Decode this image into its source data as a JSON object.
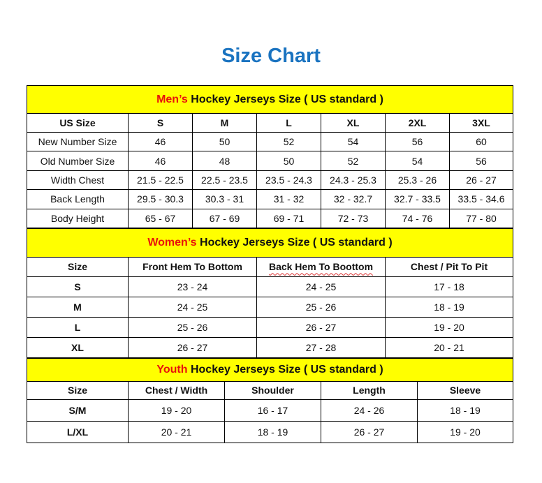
{
  "title": "Size Chart",
  "colors": {
    "title": "#1a73c0",
    "section_bg": "#ffff00",
    "section_accent": "#e8120c"
  },
  "men": {
    "heading_accent": "Men’s",
    "heading_rest": " Hockey Jerseys Size ( US standard )",
    "columns": [
      "US Size",
      "S",
      "M",
      "L",
      "XL",
      "2XL",
      "3XL"
    ],
    "rows": [
      [
        "New Number Size",
        "46",
        "50",
        "52",
        "54",
        "56",
        "60"
      ],
      [
        "Old Number Size",
        "46",
        "48",
        "50",
        "52",
        "54",
        "56"
      ],
      [
        "Width Chest",
        "21.5 - 22.5",
        "22.5 - 23.5",
        "23.5 - 24.3",
        "24.3 - 25.3",
        "25.3 - 26",
        "26 - 27"
      ],
      [
        "Back Length",
        "29.5 - 30.3",
        "30.3 - 31",
        "31 - 32",
        "32 - 32.7",
        "32.7 - 33.5",
        "33.5 - 34.6"
      ],
      [
        "Body Height",
        "65 - 67",
        "67 - 69",
        "69 - 71",
        "72 - 73",
        "74 - 76",
        "77 - 80"
      ]
    ]
  },
  "women": {
    "heading_accent": "Women’s",
    "heading_rest": " Hockey Jerseys Size ( US standard )",
    "columns": [
      "Size",
      "Front Hem To Bottom",
      "Back Hem To Boottom",
      "Chest / Pit To Pit"
    ],
    "rows": [
      [
        "S",
        "23 - 24",
        "24 - 25",
        "17 - 18"
      ],
      [
        "M",
        "24 - 25",
        "25 - 26",
        "18 - 19"
      ],
      [
        "L",
        "25 - 26",
        "26 - 27",
        "19 - 20"
      ],
      [
        "XL",
        "26 - 27",
        "27 - 28",
        "20 - 21"
      ]
    ]
  },
  "youth": {
    "heading_accent": "Youth",
    "heading_rest": " Hockey Jerseys Size ( US standard )",
    "columns": [
      "Size",
      "Chest / Width",
      "Shoulder",
      "Length",
      "Sleeve"
    ],
    "rows": [
      [
        "S/M",
        "19 - 20",
        "16 - 17",
        "24 - 26",
        "18 - 19"
      ],
      [
        "L/XL",
        "20 - 21",
        "18 - 19",
        "26 - 27",
        "19 - 20"
      ]
    ]
  }
}
